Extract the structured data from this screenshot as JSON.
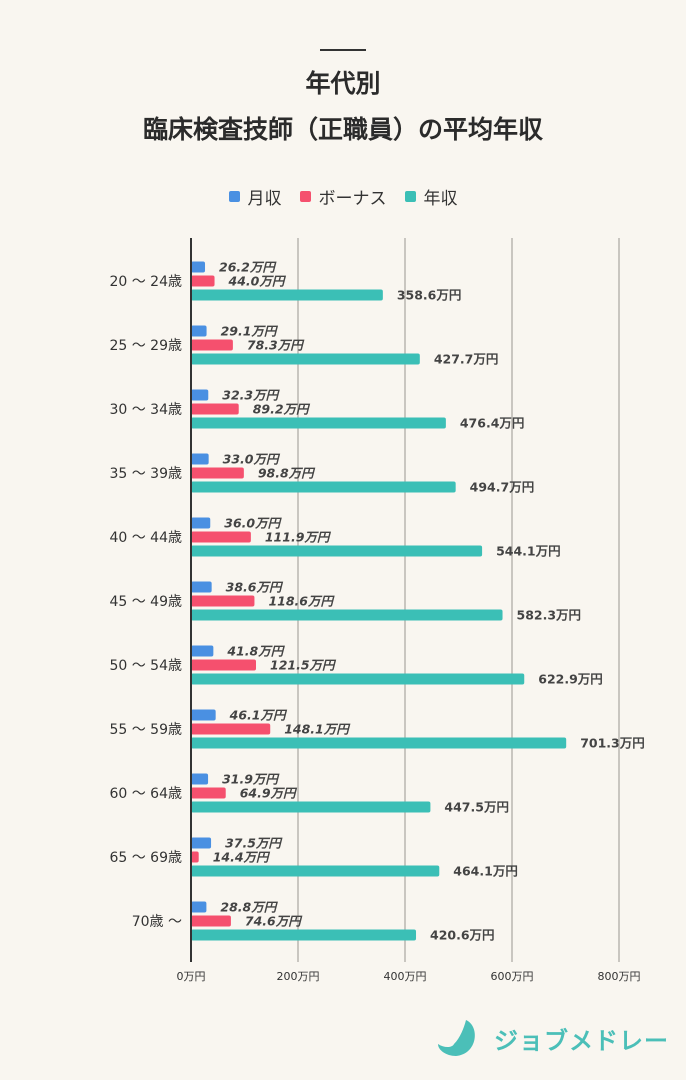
{
  "title": {
    "line1": "年代別",
    "line2": "臨床検査技師（正職員）の平均年収"
  },
  "logo_text": "ジョブメドレー",
  "chart_data": {
    "type": "bar",
    "orientation": "horizontal",
    "title": "年代別 臨床検査技師（正職員）の平均年収",
    "categories": [
      "20 ～ 24歳",
      "25 ～ 29歳",
      "30 ～ 34歳",
      "35 ～ 39歳",
      "40 ～ 44歳",
      "45 ～ 49歳",
      "50 ～ 54歳",
      "55 ～ 59歳",
      "60 ～ 64歳",
      "65 ～ 69歳",
      "70歳 ～"
    ],
    "series": [
      {
        "name": "月収",
        "color": "#4a90e2",
        "values": [
          26.2,
          29.1,
          32.3,
          33.0,
          36.0,
          38.6,
          41.8,
          46.1,
          31.9,
          37.5,
          28.8
        ],
        "labels": [
          "26.2万円",
          "29.1万円",
          "32.3万円",
          "33.0万円",
          "36.0万円",
          "38.6万円",
          "41.8万円",
          "46.1万円",
          "31.9万円",
          "37.5万円",
          "28.8万円"
        ]
      },
      {
        "name": "ボーナス",
        "color": "#f5506e",
        "values": [
          44.0,
          78.3,
          89.2,
          98.8,
          111.9,
          118.6,
          121.5,
          148.1,
          64.9,
          14.4,
          74.6
        ],
        "labels": [
          "44.0万円",
          "78.3万円",
          "89.2万円",
          "98.8万円",
          "111.9万円",
          "118.6万円",
          "121.5万円",
          "148.1万円",
          "64.9万円",
          "14.4万円",
          "74.6万円"
        ]
      },
      {
        "name": "年収",
        "color": "#3bbfb6",
        "values": [
          358.6,
          427.7,
          476.4,
          494.7,
          544.1,
          582.3,
          622.9,
          701.3,
          447.5,
          464.1,
          420.6
        ],
        "labels": [
          "358.6万円",
          "427.7万円",
          "476.4万円",
          "494.7万円",
          "544.1万円",
          "582.3万円",
          "622.9万円",
          "701.3万円",
          "447.5万円",
          "464.1万円",
          "420.6万円"
        ]
      }
    ],
    "xlim": [
      0,
      800
    ],
    "xticks": [
      0,
      200,
      400,
      600,
      800
    ],
    "xtick_labels": [
      "0万円",
      "200万円",
      "400万円",
      "600万円",
      "800万円"
    ],
    "grid": true,
    "legend_position": "top"
  }
}
